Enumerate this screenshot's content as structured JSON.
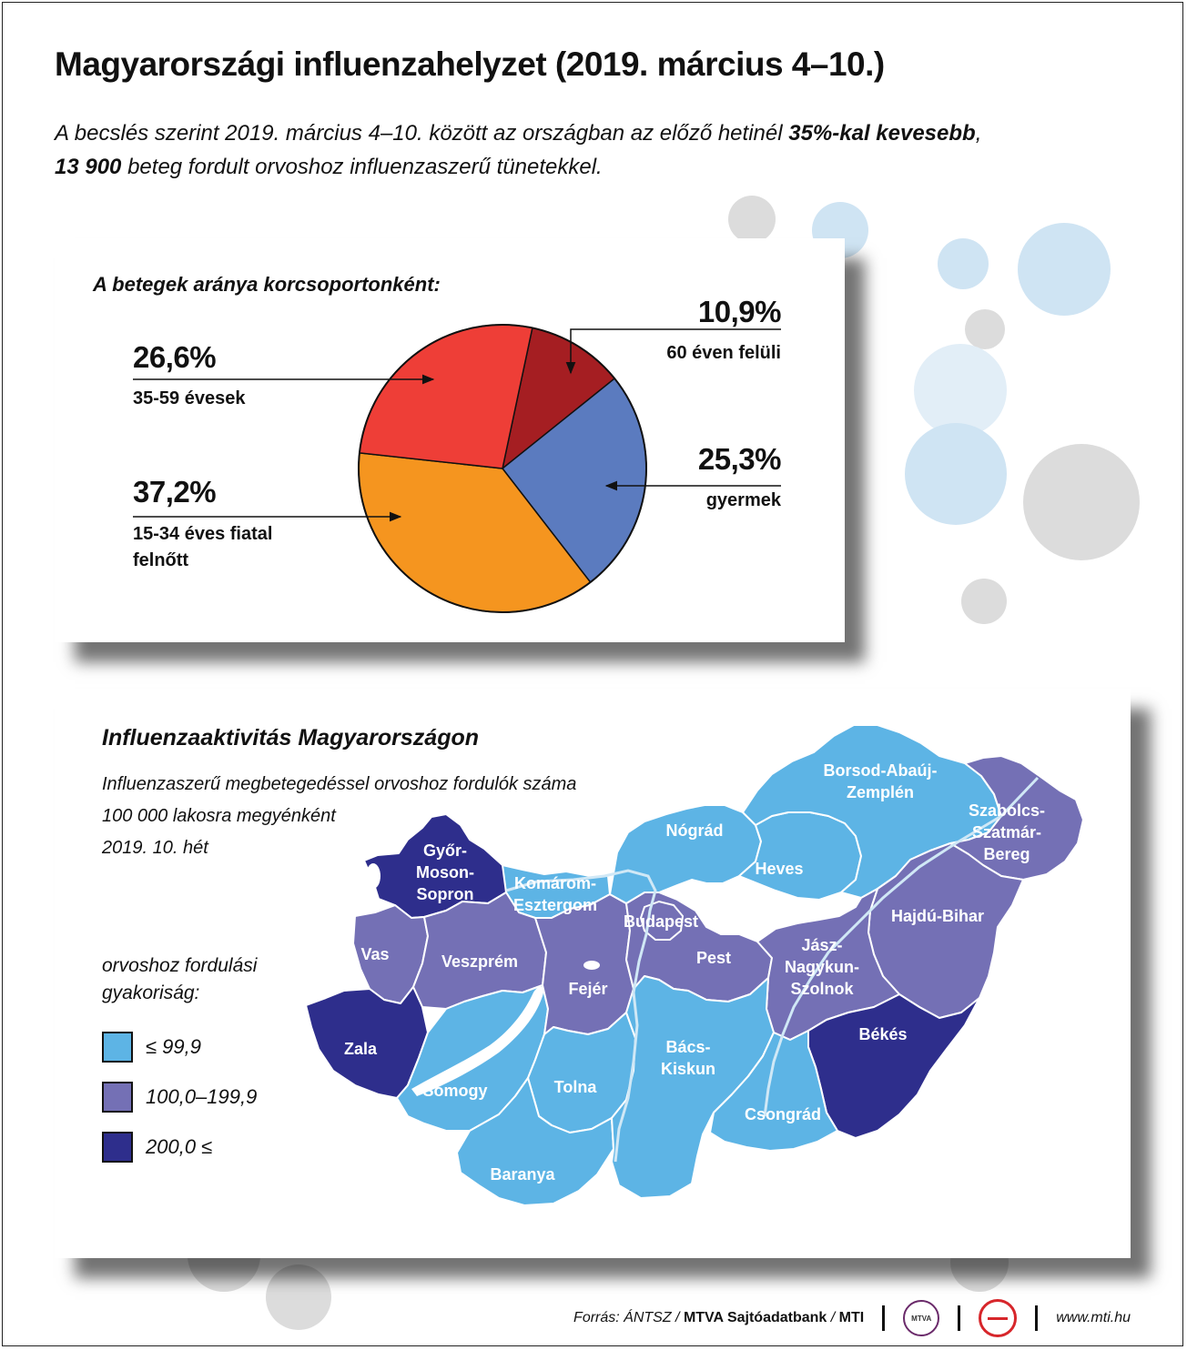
{
  "title": "Magyarországi influenzahelyzet (2019. március 4–10.)",
  "subtitle": {
    "part1": "A becslés szerint 2019. március 4–10. között az országban az előző hetinél ",
    "highlight1": "35%-kal kevesebb",
    "part2": ",",
    "highlight2": "13 900",
    "part3": " beteg fordult orvoshoz influenzaszerű tünetekkel."
  },
  "pie": {
    "title": "A betegek aránya korcsoportonként:",
    "slices": [
      {
        "pct": "10,9%",
        "label": "60 éven felüli",
        "color": "#a51e22"
      },
      {
        "pct": "25,3%",
        "label": "gyermek",
        "color": "#5b7bbf"
      },
      {
        "pct": "37,2%",
        "label": "15-34 éves fiatal felnőtt",
        "color": "#f5951f"
      },
      {
        "pct": "26,6%",
        "label": "35-59 évesek",
        "color": "#ee3e37"
      }
    ]
  },
  "chart_data": {
    "type": "pie",
    "title": "A betegek aránya korcsoportonként:",
    "categories": [
      "60 éven felüli",
      "gyermek",
      "15-34 éves fiatal felnőtt",
      "35-59 évesek"
    ],
    "values": [
      10.9,
      25.3,
      37.2,
      26.6
    ],
    "colors": [
      "#a51e22",
      "#5b7bbf",
      "#f5951f",
      "#ee3e37"
    ]
  },
  "map": {
    "title": "Influenzaaktivitás Magyarországon",
    "subtitle_lines": [
      "Influenzaszerű megbetegedéssel orvoshoz fordulók száma",
      "100 000 lakosra megyénként",
      "2019. 10. hét"
    ],
    "legend_title_lines": [
      "orvoshoz fordulási",
      "gyakoriság:"
    ],
    "legend": [
      {
        "label": "≤ 99,9",
        "color": "#5db4e5"
      },
      {
        "label": "100,0–199,9",
        "color": "#7470b5"
      },
      {
        "label": "200,0 ≤",
        "color": "#2e2e8c"
      }
    ],
    "counties": [
      {
        "name": "Győr-\nMoson-\nSopron",
        "level": 2
      },
      {
        "name": "Komárom-\nEsztergom",
        "level": 0
      },
      {
        "name": "Vas",
        "level": 1
      },
      {
        "name": "Veszprém",
        "level": 1
      },
      {
        "name": "Zala",
        "level": 2
      },
      {
        "name": "Somogy",
        "level": 0
      },
      {
        "name": "Fejér",
        "level": 1
      },
      {
        "name": "Tolna",
        "level": 0
      },
      {
        "name": "Baranya",
        "level": 0
      },
      {
        "name": "Budapest",
        "level": 1
      },
      {
        "name": "Pest",
        "level": 1
      },
      {
        "name": "Nógrád",
        "level": 0
      },
      {
        "name": "Heves",
        "level": 0
      },
      {
        "name": "Borsod-Abaúj-\nZemplén",
        "level": 0
      },
      {
        "name": "Szabolcs-\nSzatmár-\nBereg",
        "level": 1
      },
      {
        "name": "Hajdú-Bihar",
        "level": 1
      },
      {
        "name": "Jász-\nNagykun-\nSzolnok",
        "level": 1
      },
      {
        "name": "Bács-\nKiskun",
        "level": 0
      },
      {
        "name": "Békés",
        "level": 2
      },
      {
        "name": "Csongrád",
        "level": 0
      }
    ]
  },
  "footer": {
    "source_prefix": "Forrás: ÁNTSZ / ",
    "source_bold": "MTVA Sajtóadatbank",
    "source_mid": " / ",
    "source_bold2": "MTI",
    "logo1_text": "MTVA",
    "site": "www.mti.hu"
  }
}
